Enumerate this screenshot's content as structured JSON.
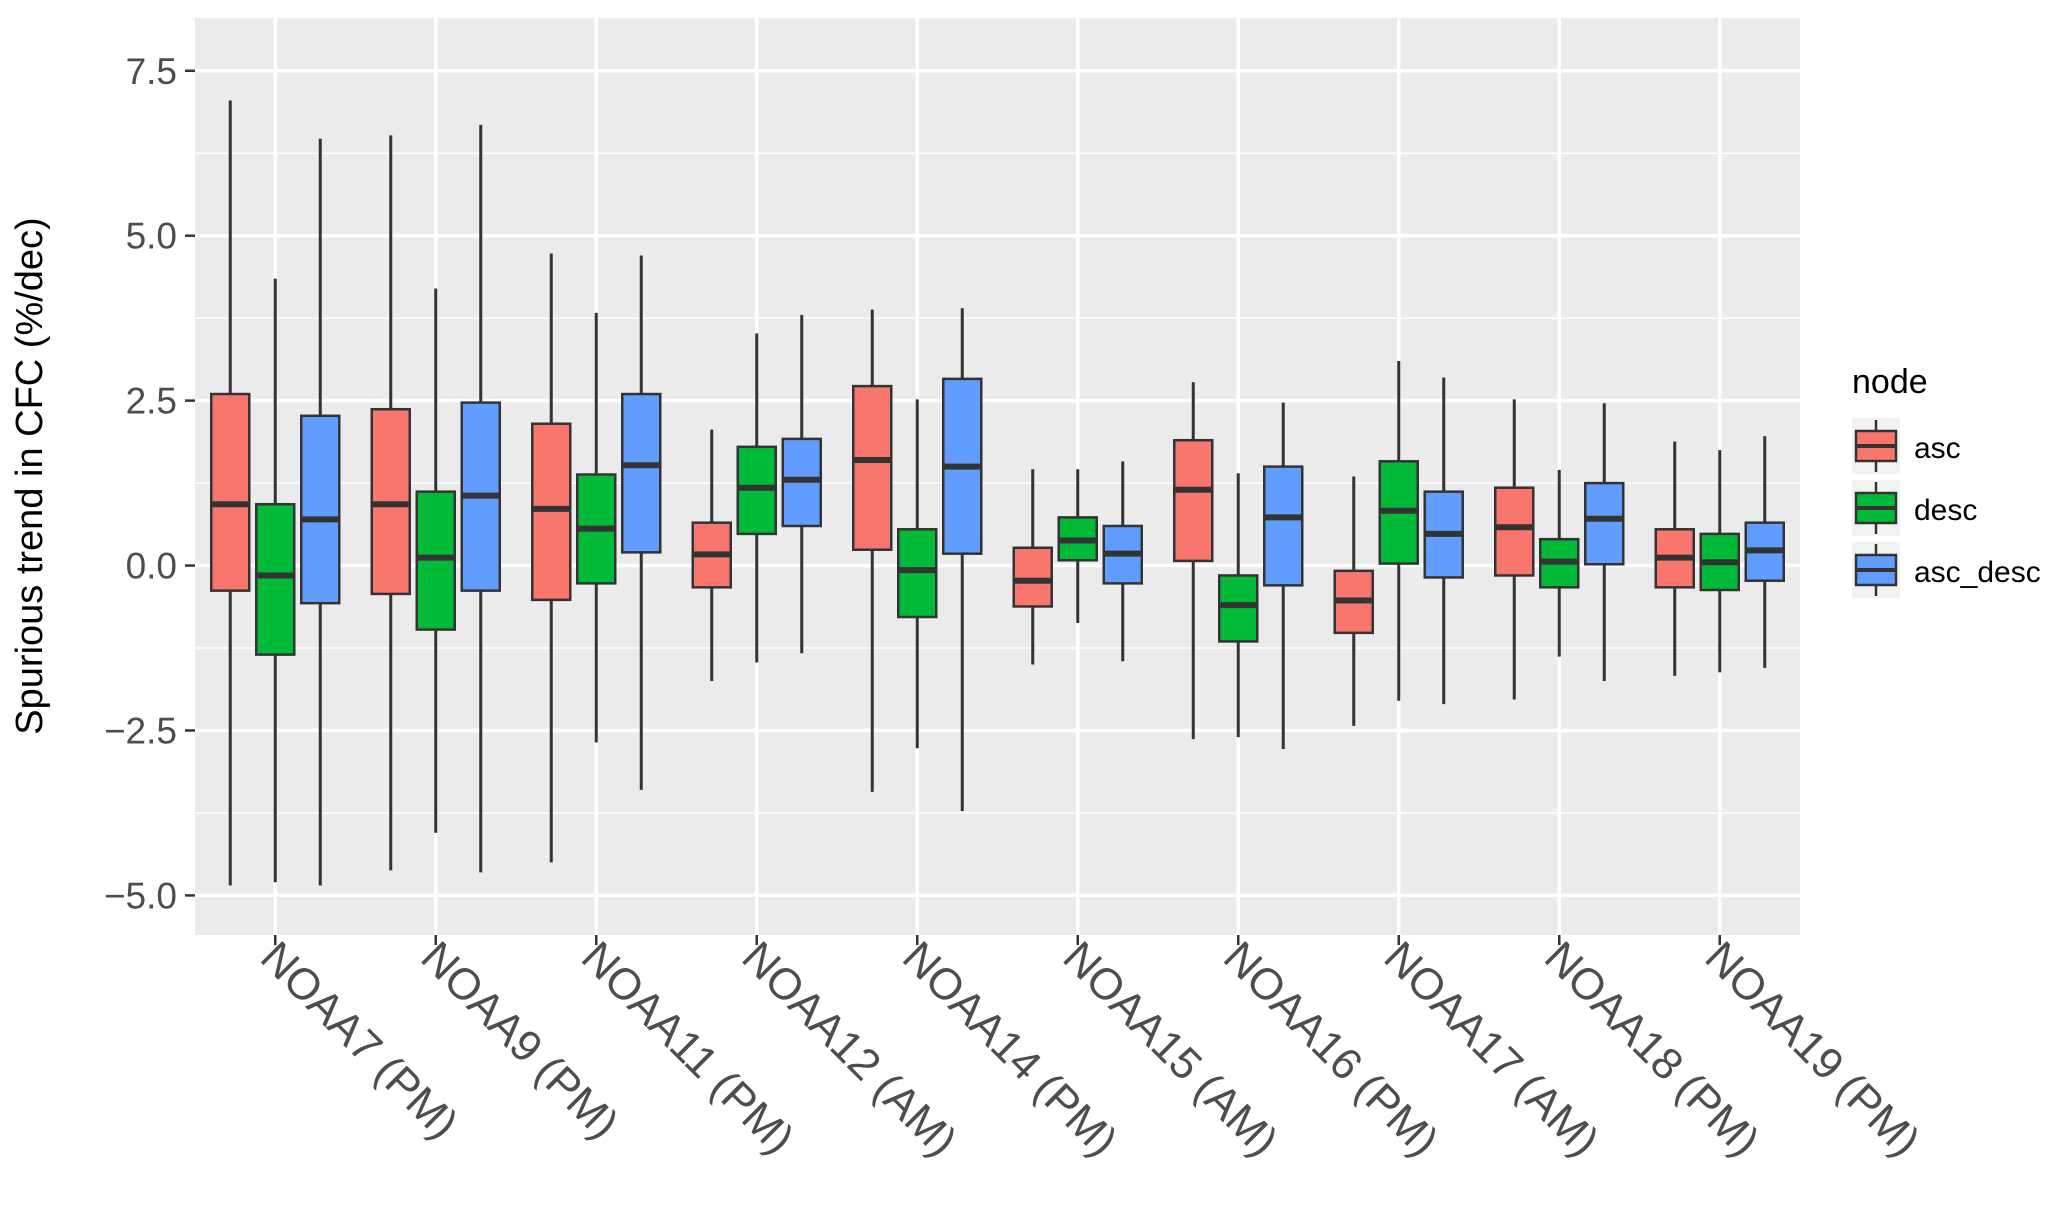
{
  "chart_data": {
    "type": "boxplot",
    "ylabel": "Spurious trend in CFC (%/dec)",
    "xlabel": "",
    "ylim": [
      -5.6,
      8.3
    ],
    "y_ticks": [
      -5.0,
      -2.5,
      0.0,
      2.5,
      5.0,
      7.5
    ],
    "y_tick_labels": [
      "−5.0",
      "−2.5",
      "0.0",
      "2.5",
      "5.0",
      "7.5"
    ],
    "grid": true,
    "legend_position": "right",
    "legend_title": "node",
    "categories": [
      "NOAA7 (PM)",
      "NOAA9 (PM)",
      "NOAA11 (PM)",
      "NOAA12 (AM)",
      "NOAA14 (PM)",
      "NOAA15 (AM)",
      "NOAA16 (PM)",
      "NOAA17 (AM)",
      "NOAA18 (PM)",
      "NOAA19 (PM)"
    ],
    "series": [
      {
        "name": "asc",
        "color": "#F8766D",
        "boxes": [
          {
            "min": -4.85,
            "q1": -0.38,
            "median": 0.93,
            "q3": 2.6,
            "max": 7.05
          },
          {
            "min": -4.62,
            "q1": -0.43,
            "median": 0.93,
            "q3": 2.37,
            "max": 6.52
          },
          {
            "min": -4.5,
            "q1": -0.52,
            "median": 0.86,
            "q3": 2.15,
            "max": 4.73
          },
          {
            "min": -1.75,
            "q1": -0.33,
            "median": 0.17,
            "q3": 0.65,
            "max": 2.06
          },
          {
            "min": -3.43,
            "q1": 0.24,
            "median": 1.6,
            "q3": 2.72,
            "max": 3.88
          },
          {
            "min": -1.5,
            "q1": -0.62,
            "median": -0.23,
            "q3": 0.27,
            "max": 1.46
          },
          {
            "min": -2.63,
            "q1": 0.07,
            "median": 1.15,
            "q3": 1.9,
            "max": 2.78
          },
          {
            "min": -2.43,
            "q1": -1.02,
            "median": -0.53,
            "q3": -0.08,
            "max": 1.35
          },
          {
            "min": -2.03,
            "q1": -0.15,
            "median": 0.58,
            "q3": 1.18,
            "max": 2.52
          },
          {
            "min": -1.67,
            "q1": -0.33,
            "median": 0.12,
            "q3": 0.55,
            "max": 1.88
          }
        ]
      },
      {
        "name": "desc",
        "color": "#00BA38",
        "boxes": [
          {
            "min": -4.8,
            "q1": -1.35,
            "median": -0.15,
            "q3": 0.93,
            "max": 4.35
          },
          {
            "min": -4.05,
            "q1": -0.97,
            "median": 0.12,
            "q3": 1.12,
            "max": 4.2
          },
          {
            "min": -2.68,
            "q1": -0.27,
            "median": 0.56,
            "q3": 1.38,
            "max": 3.83
          },
          {
            "min": -1.47,
            "q1": 0.48,
            "median": 1.18,
            "q3": 1.8,
            "max": 3.52
          },
          {
            "min": -2.77,
            "q1": -0.78,
            "median": -0.07,
            "q3": 0.55,
            "max": 2.52
          },
          {
            "min": -0.87,
            "q1": 0.08,
            "median": 0.38,
            "q3": 0.73,
            "max": 1.46
          },
          {
            "min": -2.6,
            "q1": -1.15,
            "median": -0.6,
            "q3": -0.15,
            "max": 1.4
          },
          {
            "min": -2.05,
            "q1": 0.03,
            "median": 0.83,
            "q3": 1.58,
            "max": 3.1
          },
          {
            "min": -1.38,
            "q1": -0.33,
            "median": 0.06,
            "q3": 0.4,
            "max": 1.45
          },
          {
            "min": -1.62,
            "q1": -0.37,
            "median": 0.05,
            "q3": 0.48,
            "max": 1.75
          }
        ]
      },
      {
        "name": "asc_desc",
        "color": "#619CFF",
        "boxes": [
          {
            "min": -4.85,
            "q1": -0.57,
            "median": 0.7,
            "q3": 2.27,
            "max": 6.47
          },
          {
            "min": -4.65,
            "q1": -0.38,
            "median": 1.06,
            "q3": 2.47,
            "max": 6.68
          },
          {
            "min": -3.4,
            "q1": 0.2,
            "median": 1.52,
            "q3": 2.6,
            "max": 4.7
          },
          {
            "min": -1.33,
            "q1": 0.6,
            "median": 1.3,
            "q3": 1.92,
            "max": 3.8
          },
          {
            "min": -3.72,
            "q1": 0.18,
            "median": 1.5,
            "q3": 2.83,
            "max": 3.9
          },
          {
            "min": -1.45,
            "q1": -0.27,
            "median": 0.18,
            "q3": 0.6,
            "max": 1.58
          },
          {
            "min": -2.78,
            "q1": -0.3,
            "median": 0.73,
            "q3": 1.5,
            "max": 2.47
          },
          {
            "min": -2.1,
            "q1": -0.18,
            "median": 0.48,
            "q3": 1.12,
            "max": 2.85
          },
          {
            "min": -1.75,
            "q1": 0.02,
            "median": 0.71,
            "q3": 1.25,
            "max": 2.46
          },
          {
            "min": -1.55,
            "q1": -0.23,
            "median": 0.23,
            "q3": 0.65,
            "max": 1.96
          }
        ]
      }
    ]
  }
}
